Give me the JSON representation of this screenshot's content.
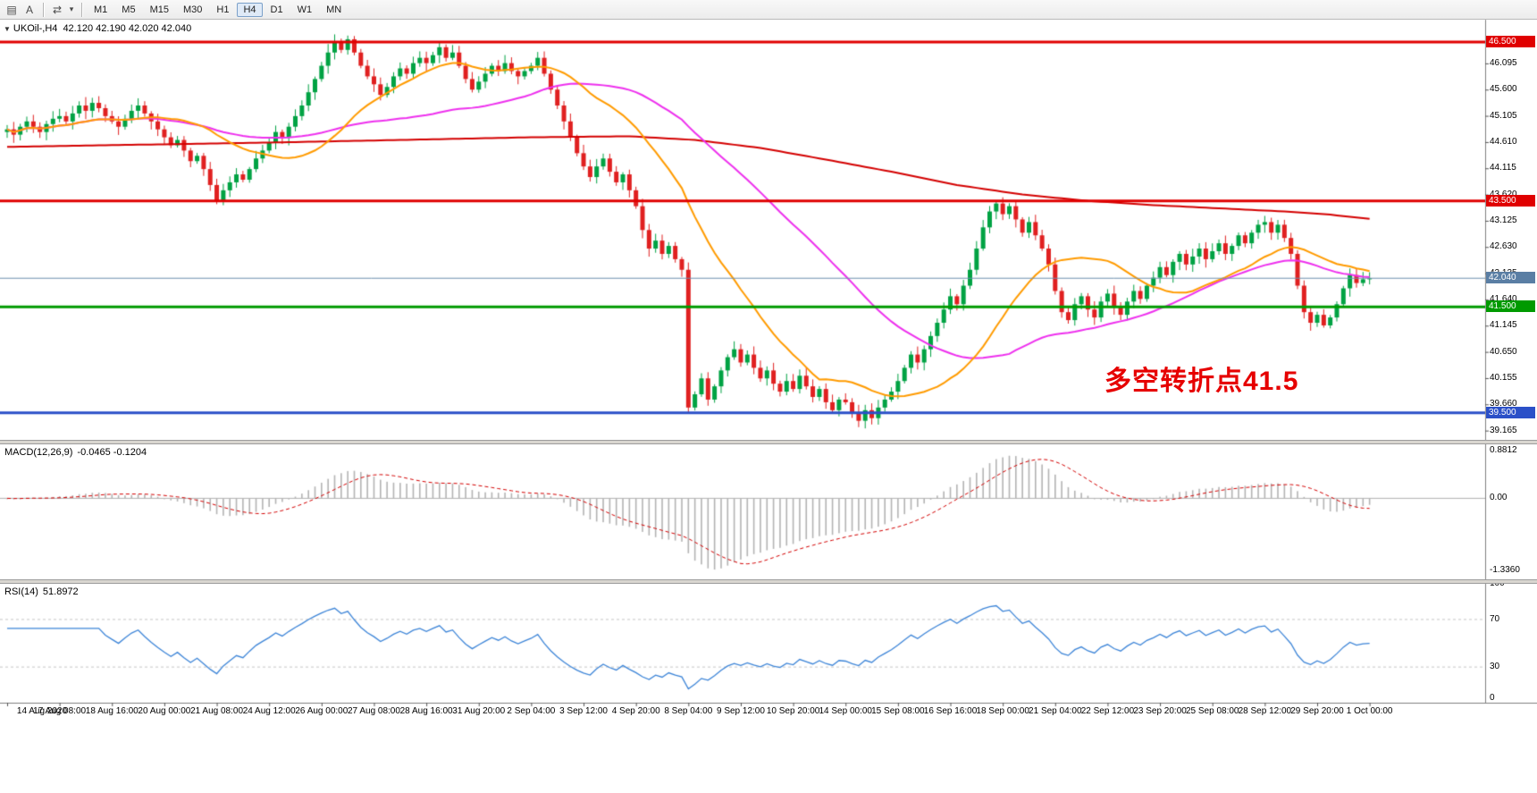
{
  "toolbar": {
    "icons": [
      {
        "glyph": "▤",
        "name": "chart-mode-icon"
      },
      {
        "glyph": "A",
        "name": "annotation-tool"
      },
      {
        "glyph": "⇄",
        "name": "template-cycle-icon"
      },
      {
        "glyph": "▾",
        "name": "dropdown-caret-icon"
      }
    ],
    "timeframes": [
      {
        "label": "M1",
        "active": false
      },
      {
        "label": "M5",
        "active": false
      },
      {
        "label": "M15",
        "active": false
      },
      {
        "label": "M30",
        "active": false
      },
      {
        "label": "H1",
        "active": false
      },
      {
        "label": "H4",
        "active": true
      },
      {
        "label": "D1",
        "active": false
      },
      {
        "label": "W1",
        "active": false
      },
      {
        "label": "MN",
        "active": false
      }
    ]
  },
  "main_pane": {
    "collapse_glyph": "▼",
    "symbol_header": "UKOil-,H4",
    "ohlc": "42.120 42.190 42.020 42.040",
    "annotation": {
      "text": "多空转折点41.5",
      "color": "#e60000"
    },
    "axis_labels": [
      {
        "text": "46.095",
        "value": 46.095
      },
      {
        "text": "45.600",
        "value": 45.6
      },
      {
        "text": "45.105",
        "value": 45.105
      },
      {
        "text": "44.610",
        "value": 44.61
      },
      {
        "text": "44.115",
        "value": 44.115
      },
      {
        "text": "43.620",
        "value": 43.62
      },
      {
        "text": "43.125",
        "value": 43.125
      },
      {
        "text": "42.630",
        "value": 42.63
      },
      {
        "text": "42.135",
        "value": 42.135
      },
      {
        "text": "41.640",
        "value": 41.64
      },
      {
        "text": "41.145",
        "value": 41.145
      },
      {
        "text": "40.650",
        "value": 40.65
      },
      {
        "text": "40.155",
        "value": 40.155
      },
      {
        "text": "39.660",
        "value": 39.66
      },
      {
        "text": "39.165",
        "value": 39.165
      }
    ],
    "badges": [
      {
        "text": "46.500",
        "value": 46.5,
        "color": "#e00000"
      },
      {
        "text": "43.500",
        "value": 43.5,
        "color": "#e00000"
      },
      {
        "text": "42.040",
        "value": 42.04,
        "color": "#5a7ea4"
      },
      {
        "text": "41.500",
        "value": 41.5,
        "color": "#009a00"
      },
      {
        "text": "39.500",
        "value": 39.5,
        "color": "#2b50c8"
      }
    ]
  },
  "macd_pane": {
    "label": "MACD(12,26,9)",
    "values": "-0.0465 -0.1204",
    "axis": [
      {
        "text": "0.8812",
        "value": 0.8812
      },
      {
        "text": "0.00",
        "value": 0.0
      },
      {
        "text": "-1.3360",
        "value": -1.336
      }
    ]
  },
  "rsi_pane": {
    "label": "RSI(14)",
    "value": "51.8972",
    "axis": [
      {
        "text": "100",
        "value": 100
      },
      {
        "text": "70",
        "value": 70
      },
      {
        "text": "30",
        "value": 30
      },
      {
        "text": "0",
        "value": 0
      }
    ]
  },
  "time_axis": [
    {
      "bar": 0,
      "text": "14 Aug 2020"
    },
    {
      "bar": 8,
      "text": "17 Aug 08:00"
    },
    {
      "bar": 16,
      "text": "18 Aug 16:00"
    },
    {
      "bar": 24,
      "text": "20 Aug 00:00"
    },
    {
      "bar": 32,
      "text": "21 Aug 08:00"
    },
    {
      "bar": 40,
      "text": "24 Aug 12:00"
    },
    {
      "bar": 48,
      "text": "26 Aug 00:00"
    },
    {
      "bar": 56,
      "text": "27 Aug 08:00"
    },
    {
      "bar": 64,
      "text": "28 Aug 16:00"
    },
    {
      "bar": 72,
      "text": "31 Aug 20:00"
    },
    {
      "bar": 80,
      "text": "2 Sep 04:00"
    },
    {
      "bar": 88,
      "text": "3 Sep 12:00"
    },
    {
      "bar": 96,
      "text": "4 Sep 20:00"
    },
    {
      "bar": 104,
      "text": "8 Sep 04:00"
    },
    {
      "bar": 112,
      "text": "9 Sep 12:00"
    },
    {
      "bar": 120,
      "text": "10 Sep 20:00"
    },
    {
      "bar": 128,
      "text": "14 Sep 00:00"
    },
    {
      "bar": 136,
      "text": "15 Sep 08:00"
    },
    {
      "bar": 144,
      "text": "16 Sep 16:00"
    },
    {
      "bar": 152,
      "text": "18 Sep 00:00"
    },
    {
      "bar": 160,
      "text": "21 Sep 04:00"
    },
    {
      "bar": 168,
      "text": "22 Sep 12:00"
    },
    {
      "bar": 176,
      "text": "23 Sep 20:00"
    },
    {
      "bar": 184,
      "text": "25 Sep 08:00"
    },
    {
      "bar": 192,
      "text": "28 Sep 12:00"
    },
    {
      "bar": 200,
      "text": "29 Sep 20:00"
    },
    {
      "bar": 208,
      "text": "1 Oct 00:00"
    }
  ],
  "chart_data": {
    "type": "candlestick",
    "symbol": "UKOil-",
    "timeframe": "H4",
    "title": "UKOil-,H4",
    "ylim_main": [
      38.99,
      46.92
    ],
    "open_first": 44.8,
    "current": {
      "open": 42.12,
      "high": 42.19,
      "low": 42.02,
      "close": 42.04
    },
    "closes": [
      44.85,
      44.75,
      44.9,
      45.0,
      44.9,
      44.8,
      44.95,
      45.05,
      45.1,
      45.0,
      45.15,
      45.3,
      45.2,
      45.35,
      45.25,
      45.1,
      45.0,
      44.9,
      45.05,
      45.2,
      45.3,
      45.15,
      45.0,
      44.85,
      44.7,
      44.55,
      44.65,
      44.45,
      44.25,
      44.35,
      44.1,
      43.8,
      43.5,
      43.7,
      43.85,
      44.0,
      43.9,
      44.1,
      44.3,
      44.45,
      44.6,
      44.8,
      44.7,
      44.9,
      45.1,
      45.3,
      45.55,
      45.8,
      46.05,
      46.3,
      46.5,
      46.35,
      46.55,
      46.3,
      46.05,
      45.85,
      45.7,
      45.5,
      45.65,
      45.85,
      46.0,
      45.9,
      46.1,
      46.2,
      46.1,
      46.25,
      46.4,
      46.2,
      46.3,
      46.05,
      45.8,
      45.6,
      45.75,
      45.9,
      46.05,
      45.95,
      46.1,
      45.95,
      45.85,
      45.95,
      46.05,
      46.2,
      45.9,
      45.6,
      45.3,
      45.0,
      44.7,
      44.4,
      44.15,
      43.95,
      44.15,
      44.3,
      44.05,
      43.85,
      44.0,
      43.7,
      43.4,
      42.95,
      42.6,
      42.75,
      42.5,
      42.65,
      42.4,
      42.2,
      39.6,
      39.85,
      40.15,
      39.75,
      40.0,
      40.3,
      40.55,
      40.7,
      40.45,
      40.6,
      40.35,
      40.15,
      40.3,
      40.05,
      39.9,
      40.1,
      39.95,
      40.2,
      40.0,
      39.8,
      39.95,
      39.7,
      39.55,
      39.75,
      39.7,
      39.5,
      39.35,
      39.55,
      39.4,
      39.6,
      39.75,
      39.9,
      40.1,
      40.35,
      40.6,
      40.45,
      40.7,
      40.95,
      41.2,
      41.45,
      41.7,
      41.55,
      41.9,
      42.2,
      42.6,
      43.0,
      43.3,
      43.45,
      43.25,
      43.4,
      43.15,
      42.9,
      43.1,
      42.85,
      42.6,
      42.3,
      41.8,
      41.4,
      41.25,
      41.55,
      41.7,
      41.45,
      41.3,
      41.6,
      41.75,
      41.5,
      41.35,
      41.6,
      41.8,
      41.65,
      41.9,
      42.05,
      42.25,
      42.1,
      42.35,
      42.5,
      42.3,
      42.45,
      42.6,
      42.4,
      42.55,
      42.7,
      42.5,
      42.65,
      42.85,
      42.7,
      42.9,
      43.05,
      43.1,
      42.9,
      43.05,
      42.8,
      42.5,
      41.9,
      41.4,
      41.2,
      41.35,
      41.15,
      41.3,
      41.55,
      41.85,
      42.1,
      41.95,
      42.02,
      42.04
    ],
    "hlines": [
      {
        "price": 46.5,
        "color": "#e00000",
        "width": 3
      },
      {
        "price": 43.5,
        "color": "#e00000",
        "width": 3
      },
      {
        "price": 41.5,
        "color": "#009a00",
        "width": 3
      },
      {
        "price": 39.5,
        "color": "#2b50c8",
        "width": 3
      },
      {
        "price": 42.04,
        "color": "#6d8fae",
        "width": 1
      }
    ],
    "ma": {
      "fast_period": 21,
      "fast_color": "#ff9b00",
      "mid_period": 50,
      "mid_color": "#ee30ee",
      "slow_color": "#d40000",
      "slow_anchors": [
        [
          0,
          44.52
        ],
        [
          20,
          44.56
        ],
        [
          40,
          44.6
        ],
        [
          60,
          44.65
        ],
        [
          80,
          44.7
        ],
        [
          95,
          44.72
        ],
        [
          105,
          44.65
        ],
        [
          115,
          44.5
        ],
        [
          125,
          44.28
        ],
        [
          135,
          44.05
        ],
        [
          145,
          43.8
        ],
        [
          155,
          43.62
        ],
        [
          165,
          43.5
        ],
        [
          175,
          43.42
        ],
        [
          185,
          43.36
        ],
        [
          195,
          43.3
        ],
        [
          202,
          43.24
        ],
        [
          208,
          43.16
        ]
      ]
    },
    "macd": {
      "fast": 12,
      "slow": 26,
      "signal": 9,
      "ylim": [
        -1.5,
        1.0
      ],
      "hist_color": "#b4b4b4",
      "signal_color": "#d40000"
    },
    "rsi": {
      "period": 14,
      "color": "#3d85d8",
      "levels": [
        30,
        70
      ]
    },
    "candle_up": "#00a243",
    "candle_down": "#e02020"
  }
}
